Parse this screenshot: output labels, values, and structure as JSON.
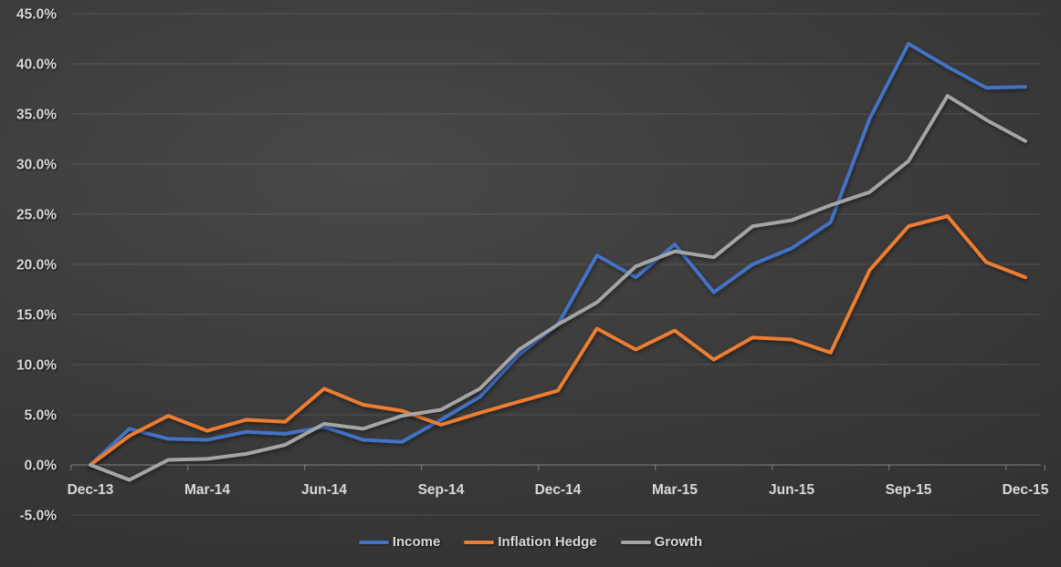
{
  "chart_data": {
    "type": "line",
    "title": "",
    "x": [
      "Dec-13",
      "Jan-14",
      "Feb-14",
      "Mar-14",
      "Apr-14",
      "May-14",
      "Jun-14",
      "Jul-14",
      "Aug-14",
      "Sep-14",
      "Oct-14",
      "Nov-14",
      "Dec-14",
      "Jan-15",
      "Feb-15",
      "Mar-15",
      "Apr-15",
      "May-15",
      "Jun-15",
      "Jul-15",
      "Aug-15",
      "Sep-15",
      "Oct-15",
      "Nov-15",
      "Dec-15"
    ],
    "x_tick_labels": [
      "Dec-13",
      "Mar-14",
      "Jun-14",
      "Sep-14",
      "Dec-14",
      "Mar-15",
      "Jun-15",
      "Sep-15",
      "Dec-15"
    ],
    "x_tick_indices": [
      0,
      3,
      6,
      9,
      12,
      15,
      18,
      21,
      24
    ],
    "series": [
      {
        "name": "Income",
        "color": "#4472C4",
        "values": [
          0.0,
          3.6,
          2.6,
          2.5,
          3.3,
          3.1,
          3.8,
          2.5,
          2.3,
          4.5,
          6.8,
          11.0,
          14.0,
          20.9,
          18.7,
          22.0,
          17.2,
          20.0,
          21.6,
          24.2,
          34.5,
          42.0,
          39.7,
          37.6,
          37.7
        ]
      },
      {
        "name": "Inflation Hedge",
        "color": "#ED7D31",
        "values": [
          0.0,
          2.9,
          4.9,
          3.4,
          4.5,
          4.3,
          7.6,
          6.0,
          5.4,
          4.0,
          5.2,
          6.3,
          7.4,
          13.6,
          11.5,
          13.4,
          10.5,
          12.7,
          12.5,
          11.2,
          19.4,
          23.8,
          24.8,
          20.2,
          18.7
        ]
      },
      {
        "name": "Growth",
        "color": "#A5A5A5",
        "values": [
          0.0,
          -1.5,
          0.5,
          0.6,
          1.1,
          2.0,
          4.1,
          3.6,
          4.9,
          5.5,
          7.6,
          11.5,
          14.0,
          16.2,
          19.8,
          21.3,
          20.7,
          23.8,
          24.4,
          25.9,
          27.2,
          30.3,
          36.8,
          34.4,
          32.3
        ]
      }
    ],
    "y_axis": {
      "min": -5,
      "max": 45,
      "step": 5,
      "unit": "%",
      "tick_labels": [
        "45.0%",
        "40.0%",
        "35.0%",
        "30.0%",
        "25.0%",
        "20.0%",
        "15.0%",
        "10.0%",
        "5.0%",
        "0.0%",
        "-5.0%"
      ]
    },
    "grid": true,
    "legend_position": "bottom"
  },
  "style": {
    "background_center": "#484848",
    "background_edge": "#2a2a2a",
    "label_color": "#d9d9d9",
    "gridline_color": "rgba(255,255,255,0.12)",
    "axisline_color": "rgba(255,255,255,0.30)"
  }
}
